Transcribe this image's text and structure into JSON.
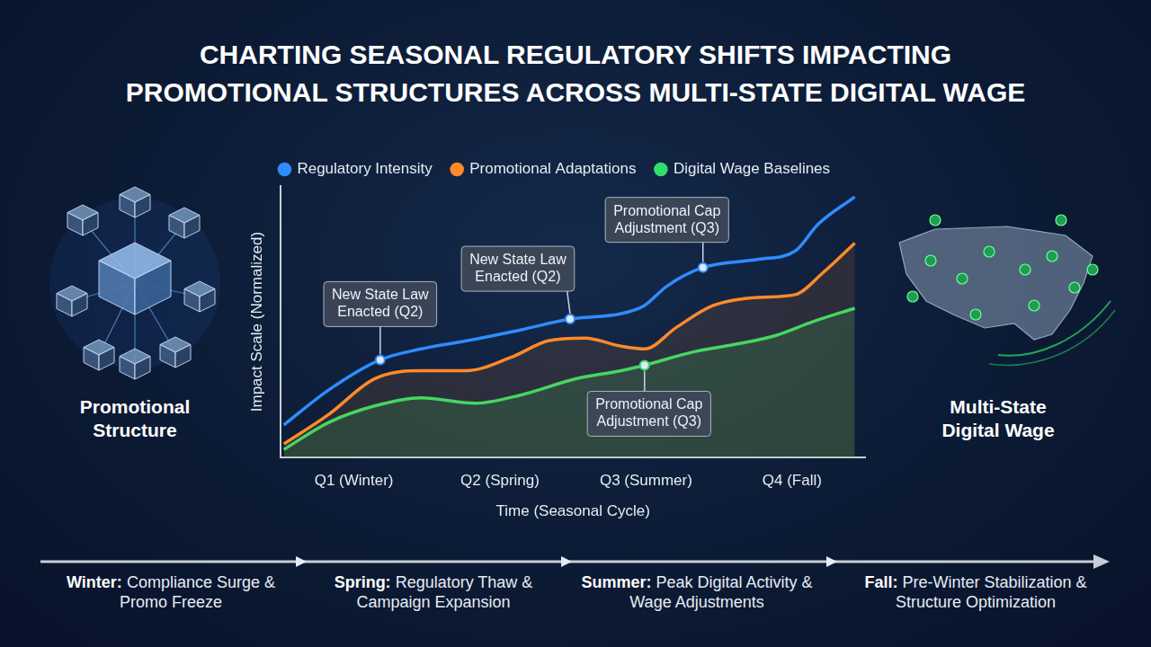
{
  "chart_data": {
    "type": "line",
    "title": "CHARTING SEASONAL REGULATORY SHIFTS IMPACTING PROMOTIONAL STRUCTURES ACROSS MULTI-STATE DIGITAL WAGE",
    "x_label": "Time (Seasonal Cycle)",
    "y_label": "Impact Scale (Normalized)",
    "xlim": [
      0.5,
      4.5
    ],
    "xticks": [
      {
        "value": 1,
        "label": "Q1 (Winter)"
      },
      {
        "value": 2,
        "label": "Q2 (Spring)"
      },
      {
        "value": 3,
        "label": "Q3 (Summer)"
      },
      {
        "value": 4,
        "label": "Q4 (Fall)"
      }
    ],
    "ylim": [
      0,
      10
    ],
    "tick_labels": "x",
    "grid": false,
    "legend": "top",
    "series": [
      {
        "name": "Regulatory Intensity",
        "color": "#2f8cff",
        "x": [
          0.52,
          0.83,
          1.18,
          1.46,
          1.77,
          2.14,
          2.48,
          2.83,
          2.99,
          3.14,
          3.39,
          3.77,
          4.02,
          4.18,
          4.43
        ],
        "values": [
          1.2,
          2.5,
          3.6,
          4.0,
          4.3,
          4.7,
          5.1,
          5.3,
          5.6,
          6.3,
          7.0,
          7.3,
          7.6,
          8.6,
          9.6
        ]
      },
      {
        "name": "Promotional Adaptations",
        "color": "#ff8a2a",
        "x": [
          0.52,
          0.83,
          1.14,
          1.46,
          1.77,
          2.08,
          2.33,
          2.58,
          2.83,
          2.99,
          3.21,
          3.46,
          3.77,
          4.02,
          4.21,
          4.43
        ],
        "values": [
          0.5,
          1.6,
          2.9,
          3.2,
          3.2,
          3.7,
          4.3,
          4.4,
          4.1,
          4.0,
          4.8,
          5.6,
          5.9,
          6.0,
          6.8,
          7.9
        ]
      },
      {
        "name": "Digital Wage Baselines",
        "color": "#2ee06a",
        "x": [
          0.52,
          0.83,
          1.14,
          1.46,
          1.83,
          2.14,
          2.52,
          2.83,
          2.99,
          3.33,
          3.64,
          3.89,
          4.14,
          4.43
        ],
        "values": [
          0.3,
          1.3,
          1.9,
          2.2,
          2.0,
          2.3,
          2.9,
          3.2,
          3.4,
          3.9,
          4.2,
          4.5,
          5.0,
          5.5
        ]
      }
    ],
    "annotations": [
      {
        "text": "New State Law Enacted (Q2)",
        "x": 1.18,
        "y": 3.6,
        "series": "Regulatory Intensity"
      },
      {
        "text": "New State Law Enacted (Q2)",
        "x": 2.48,
        "y": 5.1,
        "series": "Regulatory Intensity"
      },
      {
        "text": "Promotional Cap Adjustment (Q3)",
        "x": 3.39,
        "y": 7.0,
        "series": "Regulatory Intensity"
      },
      {
        "text": "Promotional Cap Adjustment (Q3)",
        "x": 2.99,
        "y": 3.4,
        "series": "Digital Wage Baselines"
      }
    ]
  },
  "side_labels": {
    "left": "Promotional Structure",
    "right": "Multi-State Digital Wage"
  },
  "timeline": [
    {
      "label": "Winter:",
      "text": "Compliance Surge & Promo Freeze"
    },
    {
      "label": "Spring:",
      "text": "Regulatory Thaw & Campaign Expansion"
    },
    {
      "label": "Summer:",
      "text": "Peak Digital Activity & Wage Adjustments"
    },
    {
      "label": "Fall:",
      "text": "Pre-Winter Stabilization & Structure Optimization"
    }
  ]
}
